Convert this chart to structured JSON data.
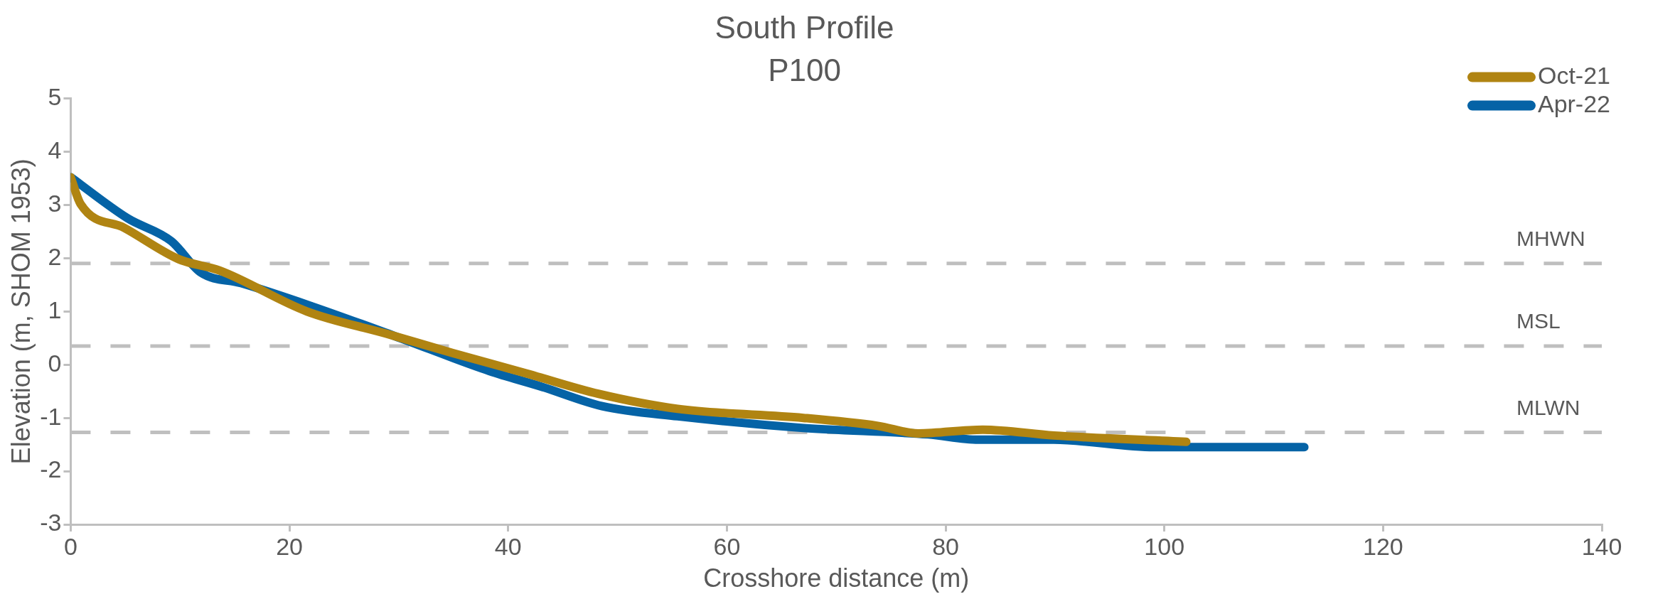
{
  "chart_data": {
    "type": "line",
    "title": "South Profile",
    "subtitle": "P100",
    "xlabel": "Crosshore distance (m)",
    "ylabel": "Elevation (m, SHOM 1953)",
    "xlim": [
      0,
      140
    ],
    "xticks": [
      0,
      20,
      40,
      60,
      80,
      100,
      120,
      140
    ],
    "ylim": [
      -3,
      5
    ],
    "yticks": [
      -3,
      -2,
      -1,
      0,
      1,
      2,
      3,
      4,
      5
    ],
    "grid": false,
    "legend": "top right",
    "marker": "none",
    "series": [
      {
        "name": "Oct-21",
        "color": "#b08412",
        "x": [
          0,
          0.9,
          4.9,
          9.9,
          13.6,
          21.6,
          28.9,
          34.9,
          41.6,
          48.3,
          55.5,
          67,
          73.8,
          77.5,
          83.4,
          89.9,
          102
        ],
        "values": [
          3.52,
          3.02,
          2.57,
          1.98,
          1.77,
          1.0,
          0.58,
          0.22,
          -0.16,
          -0.55,
          -0.83,
          -1.0,
          -1.15,
          -1.29,
          -1.22,
          -1.33,
          -1.45
        ]
      },
      {
        "name": "Apr-22",
        "color": "#0563a6",
        "x": [
          0,
          5.2,
          9.2,
          11.9,
          15.6,
          22,
          29.6,
          38.3,
          43,
          48.6,
          55.5,
          67,
          78.4,
          83,
          89.9,
          99.1,
          112.8
        ],
        "values": [
          3.52,
          2.75,
          2.32,
          1.73,
          1.53,
          1.1,
          0.54,
          -0.12,
          -0.41,
          -0.78,
          -0.97,
          -1.19,
          -1.31,
          -1.41,
          -1.41,
          -1.55,
          -1.55
        ]
      }
    ],
    "ref_lines": [
      {
        "axis": "y",
        "value": 1.9,
        "label": "MHWN",
        "color": "#bfbfbf",
        "line_style": "dashed"
      },
      {
        "axis": "y",
        "value": 0.35,
        "label": "MSL",
        "color": "#bfbfbf",
        "line_style": "dashed"
      },
      {
        "axis": "y",
        "value": -1.27,
        "label": "MLWN",
        "color": "#bfbfbf",
        "line_style": "dashed"
      }
    ]
  }
}
